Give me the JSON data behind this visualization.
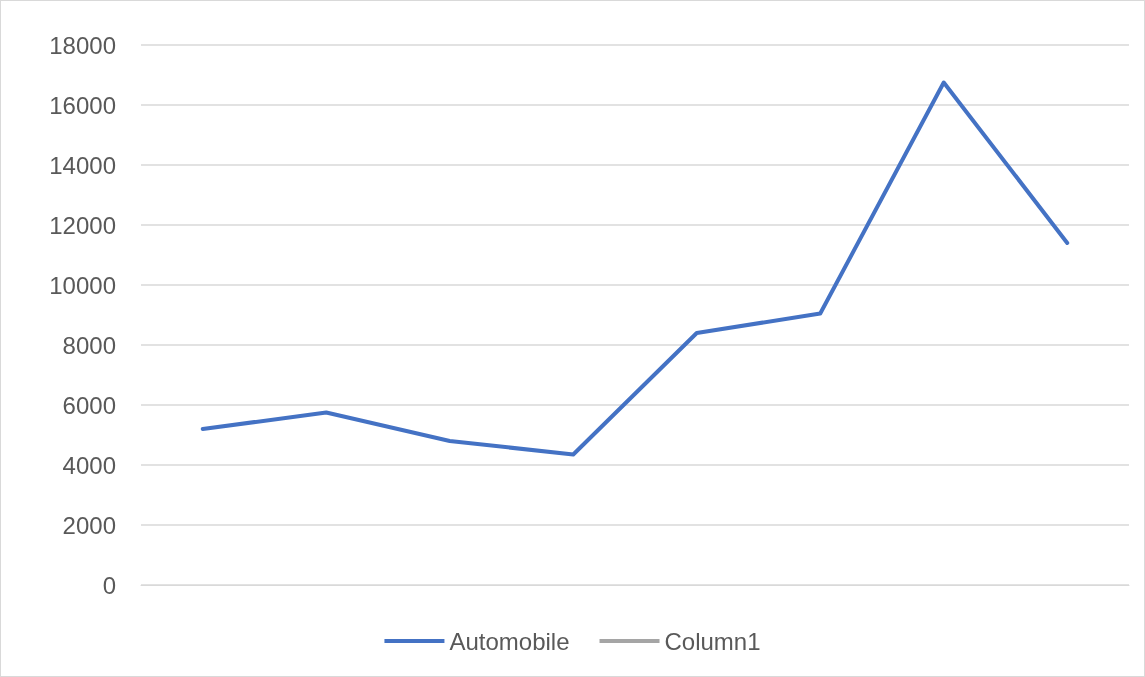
{
  "chart_data": {
    "type": "line",
    "categories": [
      null,
      null,
      null,
      null,
      null,
      null,
      null,
      null
    ],
    "series": [
      {
        "name": "Automobile",
        "color": "#4472c4",
        "values": [
          5200,
          5750,
          4800,
          4350,
          8400,
          9050,
          16750,
          11400
        ]
      },
      {
        "name": "Column1",
        "color": "#a5a5a5",
        "values": [
          null,
          null,
          null,
          null,
          null,
          null,
          null,
          null
        ]
      }
    ],
    "ylim": [
      0,
      18000
    ],
    "yticks": [
      0,
      2000,
      4000,
      6000,
      8000,
      10000,
      12000,
      14000,
      16000,
      18000
    ],
    "grid": "y",
    "legend": "bottom",
    "marker": "none",
    "line_style": "solid"
  }
}
